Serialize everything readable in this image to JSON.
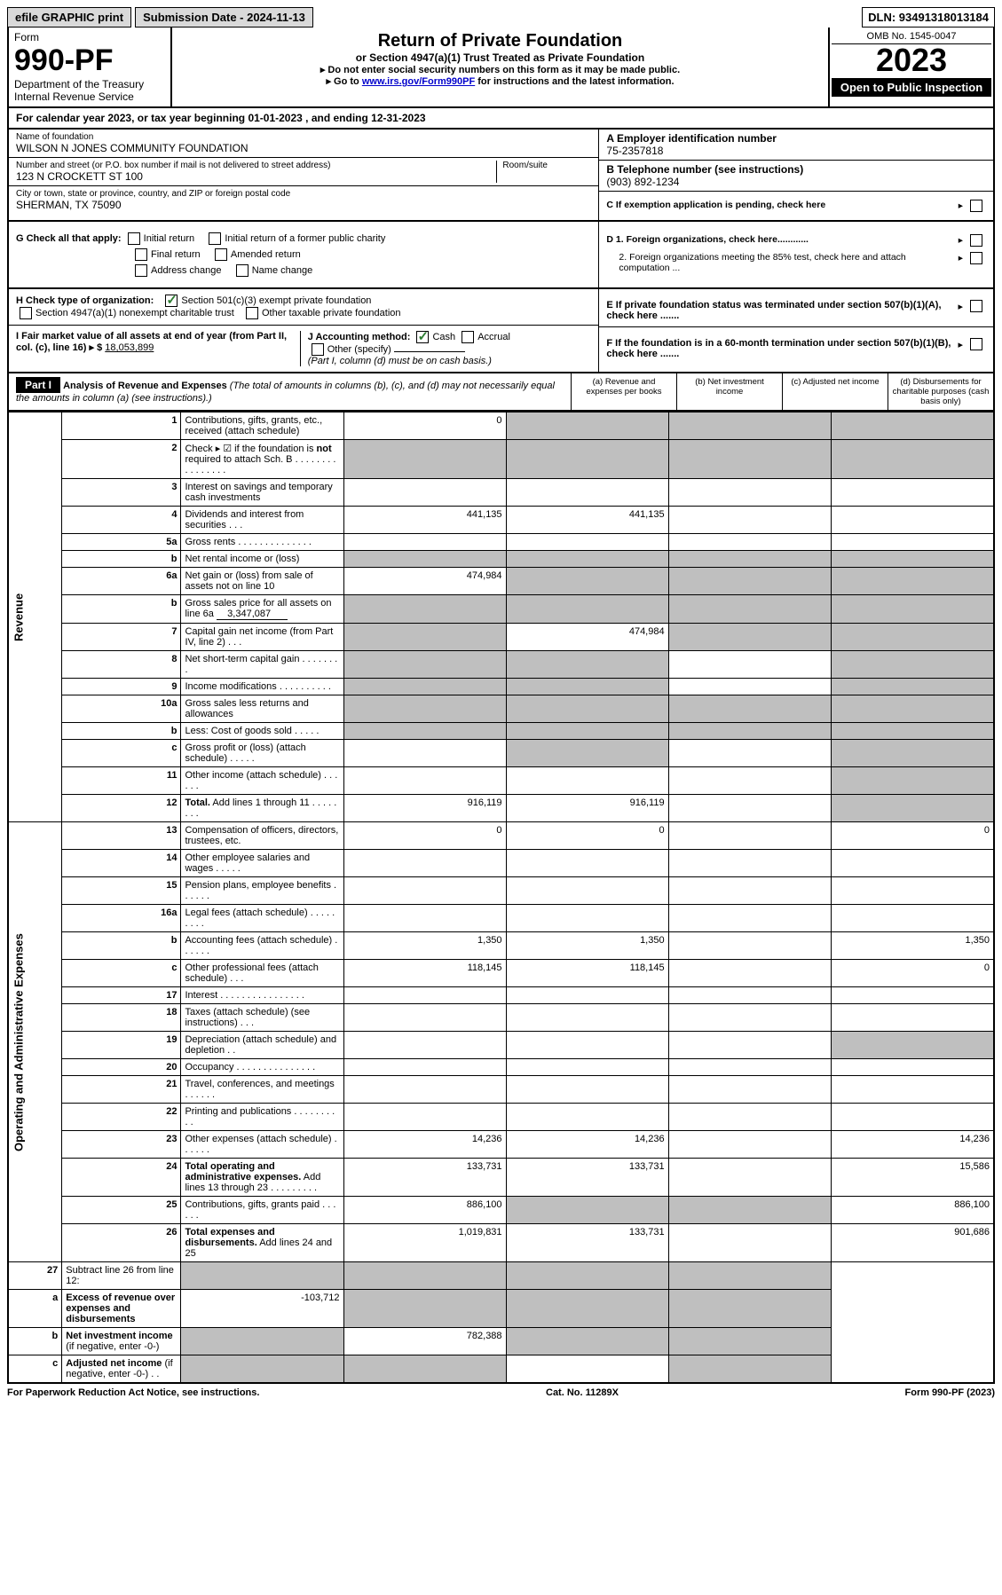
{
  "top": {
    "efile": "efile GRAPHIC print",
    "submission": "Submission Date - 2024-11-13",
    "dln": "DLN: 93491318013184"
  },
  "header": {
    "form_label": "Form",
    "form_no": "990-PF",
    "dept": "Department of the Treasury",
    "irs": "Internal Revenue Service",
    "title": "Return of Private Foundation",
    "subtitle": "or Section 4947(a)(1) Trust Treated as Private Foundation",
    "instr1": "▸ Do not enter social security numbers on this form as it may be made public.",
    "instr2_pre": "▸ Go to ",
    "instr2_link": "www.irs.gov/Form990PF",
    "instr2_post": " for instructions and the latest information.",
    "omb": "OMB No. 1545-0047",
    "year": "2023",
    "open": "Open to Public Inspection"
  },
  "calyear": "For calendar year 2023, or tax year beginning 01-01-2023             , and ending 12-31-2023",
  "info": {
    "name_lbl": "Name of foundation",
    "name": "WILSON N JONES COMMUNITY FOUNDATION",
    "addr_lbl": "Number and street (or P.O. box number if mail is not delivered to street address)",
    "addr": "123 N CROCKETT ST 100",
    "room_lbl": "Room/suite",
    "city_lbl": "City or town, state or province, country, and ZIP or foreign postal code",
    "city": "SHERMAN, TX  75090",
    "a_lbl": "A Employer identification number",
    "a_val": "75-2357818",
    "b_lbl": "B Telephone number (see instructions)",
    "b_val": "(903) 892-1234",
    "c_lbl": "C If exemption application is pending, check here",
    "d1": "D 1. Foreign organizations, check here............",
    "d2": "2. Foreign organizations meeting the 85% test, check here and attach computation ...",
    "e": "E  If private foundation status was terminated under section 507(b)(1)(A), check here .......",
    "f": "F  If the foundation is in a 60-month termination under section 507(b)(1)(B), check here .......",
    "g_lbl": "G Check all that apply:",
    "g_opts": [
      "Initial return",
      "Initial return of a former public charity",
      "Final return",
      "Amended return",
      "Address change",
      "Name change"
    ],
    "h_lbl": "H Check type of organization:",
    "h_opts": [
      "Section 501(c)(3) exempt private foundation",
      "Section 4947(a)(1) nonexempt charitable trust",
      "Other taxable private foundation"
    ],
    "i_lbl": "I Fair market value of all assets at end of year (from Part II, col. (c), line 16) ▸ $",
    "i_val": "18,053,899",
    "j_lbl": "J Accounting method:",
    "j_opts": [
      "Cash",
      "Accrual",
      "Other (specify)"
    ],
    "j_note": "(Part I, column (d) must be on cash basis.)"
  },
  "part1": {
    "tag": "Part I",
    "title": "Analysis of Revenue and Expenses",
    "title_note": " (The total of amounts in columns (b), (c), and (d) may not necessarily equal the amounts in column (a) (see instructions).)",
    "cols": {
      "a": "(a)   Revenue and expenses per books",
      "b": "(b)   Net investment income",
      "c": "(c)   Adjusted net income",
      "d": "(d)   Disbursements for charitable purposes (cash basis only)"
    }
  },
  "sections": {
    "revenue": "Revenue",
    "opexp": "Operating and Administrative Expenses"
  },
  "rows": [
    {
      "n": "1",
      "label": "Contributions, gifts, grants, etc., received (attach schedule)",
      "a": "0",
      "b_sh": true,
      "c_sh": true,
      "d_sh": true
    },
    {
      "n": "2",
      "label": "Check ▸ ☑ if the foundation is <b>not</b> required to attach Sch. B   . . . . . . . . . . . . . . . .",
      "all_sh": true,
      "checked": true
    },
    {
      "n": "3",
      "label": "Interest on savings and temporary cash investments"
    },
    {
      "n": "4",
      "label": "Dividends and interest from securities   . . .",
      "a": "441,135",
      "b": "441,135"
    },
    {
      "n": "5a",
      "label": "Gross rents   . . . . . . . . . . . . . ."
    },
    {
      "n": "b",
      "label": "Net rental income or (loss)",
      "c_sh": true,
      "d_sh": true,
      "a_sh": true,
      "b_sh": true
    },
    {
      "n": "6a",
      "label": "Net gain or (loss) from sale of assets not on line 10",
      "a": "474,984",
      "b_sh": true,
      "c_sh": true,
      "d_sh": true
    },
    {
      "n": "b",
      "label": "Gross sales price for all assets on line 6a <span class='underline-fill'>&nbsp;&nbsp;&nbsp;&nbsp;3,347,087</span>",
      "all_sh": true
    },
    {
      "n": "7",
      "label": "Capital gain net income (from Part IV, line 2)   . . .",
      "a_sh": true,
      "b": "474,984",
      "c_sh": true,
      "d_sh": true
    },
    {
      "n": "8",
      "label": "Net short-term capital gain   . . . . . . . .",
      "a_sh": true,
      "b_sh": true,
      "d_sh": true
    },
    {
      "n": "9",
      "label": "Income modifications  . . . . . . . . . .",
      "a_sh": true,
      "b_sh": true,
      "d_sh": true
    },
    {
      "n": "10a",
      "label": "Gross sales less returns and allowances",
      "all_sh": true
    },
    {
      "n": "b",
      "label": "Less: Cost of goods sold   . . . . .",
      "all_sh": true
    },
    {
      "n": "c",
      "label": "Gross profit or (loss) (attach schedule)   . . . . .",
      "b_sh": true,
      "d_sh": true
    },
    {
      "n": "11",
      "label": "Other income (attach schedule)   . . . . . .",
      "d_sh": true
    },
    {
      "n": "12",
      "label": "<b>Total.</b> Add lines 1 through 11  . . . . . . . .",
      "a": "916,119",
      "b": "916,119",
      "d_sh": true
    }
  ],
  "exp_rows": [
    {
      "n": "13",
      "label": "Compensation of officers, directors, trustees, etc.",
      "a": "0",
      "b": "0",
      "d": "0"
    },
    {
      "n": "14",
      "label": "Other employee salaries and wages   . . . . ."
    },
    {
      "n": "15",
      "label": "Pension plans, employee benefits  . . . . . ."
    },
    {
      "n": "16a",
      "label": "Legal fees (attach schedule) . . . . . . . . ."
    },
    {
      "n": "b",
      "label": "Accounting fees (attach schedule) . . . . . .",
      "a": "1,350",
      "b": "1,350",
      "d": "1,350"
    },
    {
      "n": "c",
      "label": "Other professional fees (attach schedule)   . . .",
      "a": "118,145",
      "b": "118,145",
      "d": "0"
    },
    {
      "n": "17",
      "label": "Interest  . . . . . . . . . . . . . . . ."
    },
    {
      "n": "18",
      "label": "Taxes (attach schedule) (see instructions)   . . ."
    },
    {
      "n": "19",
      "label": "Depreciation (attach schedule) and depletion   . .",
      "d_sh": true
    },
    {
      "n": "20",
      "label": "Occupancy . . . . . . . . . . . . . . ."
    },
    {
      "n": "21",
      "label": "Travel, conferences, and meetings . . . . . ."
    },
    {
      "n": "22",
      "label": "Printing and publications . . . . . . . . . ."
    },
    {
      "n": "23",
      "label": "Other expenses (attach schedule)  . . . . . .",
      "a": "14,236",
      "b": "14,236",
      "d": "14,236"
    },
    {
      "n": "24",
      "label": "<b>Total operating and administrative expenses.</b> Add lines 13 through 23   . . . . . . . . .",
      "a": "133,731",
      "b": "133,731",
      "d": "15,586"
    },
    {
      "n": "25",
      "label": "Contributions, gifts, grants paid   . . . . . .",
      "a": "886,100",
      "b_sh": true,
      "c_sh": true,
      "d": "886,100"
    },
    {
      "n": "26",
      "label": "<b>Total expenses and disbursements.</b> Add lines 24 and 25",
      "a": "1,019,831",
      "b": "133,731",
      "d": "901,686"
    }
  ],
  "final_rows": [
    {
      "n": "27",
      "label": "Subtract line 26 from line 12:",
      "all_sh": true
    },
    {
      "n": "a",
      "label": "<b>Excess of revenue over expenses and disbursements</b>",
      "a": "-103,712",
      "b_sh": true,
      "c_sh": true,
      "d_sh": true
    },
    {
      "n": "b",
      "label": "<b>Net investment income</b> (if negative, enter -0-)",
      "a_sh": true,
      "b": "782,388",
      "c_sh": true,
      "d_sh": true
    },
    {
      "n": "c",
      "label": "<b>Adjusted net income</b> (if negative, enter -0-)   . .",
      "a_sh": true,
      "b_sh": true,
      "d_sh": true
    }
  ],
  "footer": {
    "left": "For Paperwork Reduction Act Notice, see instructions.",
    "mid": "Cat. No. 11289X",
    "right": "Form 990-PF (2023)"
  }
}
